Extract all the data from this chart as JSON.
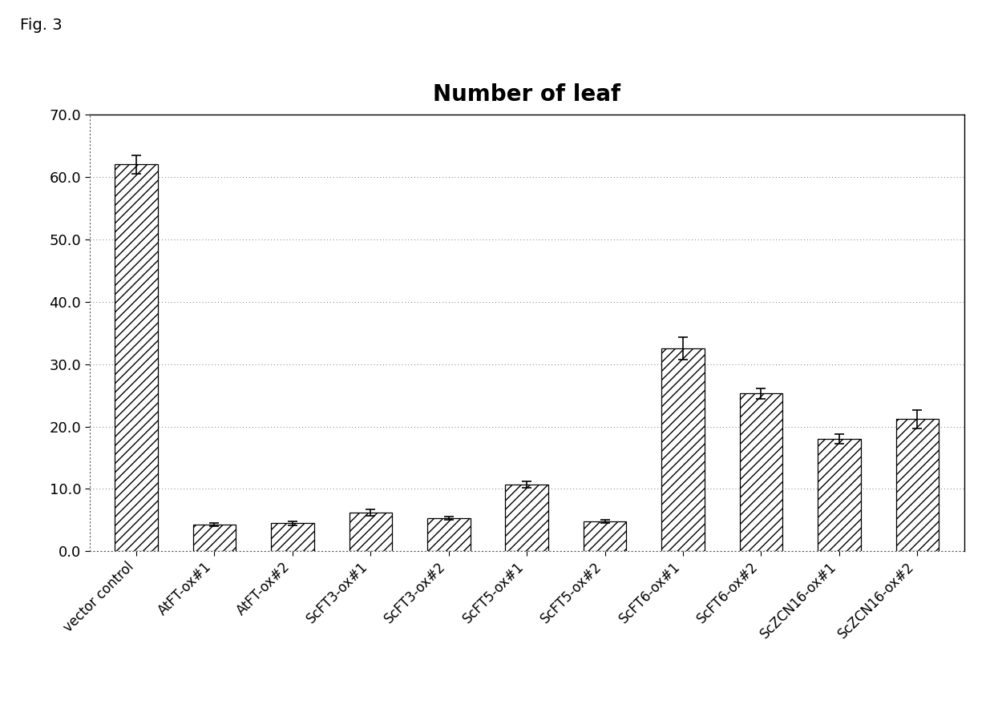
{
  "title": "Number of leaf",
  "fig_label": "Fig. 3",
  "categories": [
    "vector control",
    "AtFT-ox#1",
    "AtFT-ox#2",
    "ScFT3-ox#1",
    "ScFT3-ox#2",
    "ScFT5-ox#1",
    "ScFT5-ox#2",
    "ScFT6-ox#1",
    "ScFT6-ox#2",
    "ScZCN16-ox#1",
    "ScZCN16-ox#2"
  ],
  "values": [
    62.0,
    4.3,
    4.5,
    6.2,
    5.3,
    10.7,
    4.8,
    32.5,
    25.3,
    18.0,
    21.2
  ],
  "errors": [
    1.5,
    0.3,
    0.3,
    0.5,
    0.3,
    0.5,
    0.3,
    1.8,
    0.8,
    0.8,
    1.5
  ],
  "ylim": [
    0,
    70
  ],
  "yticks": [
    0.0,
    10.0,
    20.0,
    30.0,
    40.0,
    50.0,
    60.0,
    70.0
  ],
  "hatch": "///",
  "title_fontsize": 20,
  "tick_fontsize": 13,
  "label_fontsize": 12,
  "fig_label_fontsize": 14,
  "bar_width": 0.55
}
